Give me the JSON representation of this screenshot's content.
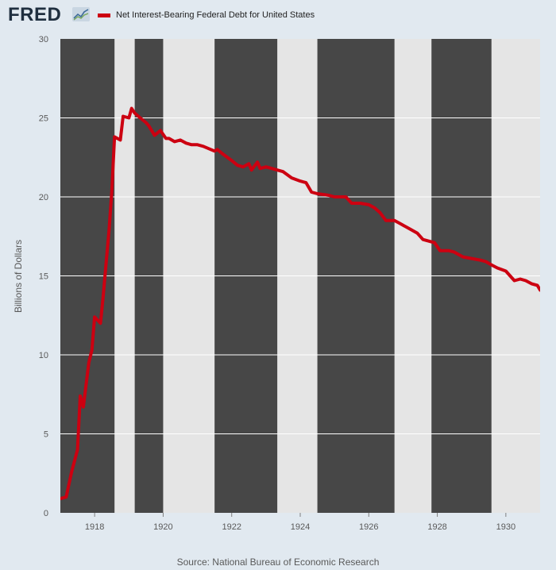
{
  "header": {
    "logo_text": "FRED",
    "logo_icon": "fred-graph-icon"
  },
  "source": "Source: National Bureau of Economic Research",
  "colors": {
    "line": "#cc0011",
    "recession_band": "#474747",
    "plot_background": "#e5e5e5",
    "page_background": "#e1e9f0"
  },
  "chart_data": {
    "type": "line",
    "title": "",
    "xlabel": "",
    "ylabel": "Billions of Dollars",
    "xlim": [
      1917.0,
      1931.0
    ],
    "ylim": [
      0,
      30
    ],
    "yticks": [
      0,
      5,
      10,
      15,
      20,
      25,
      30
    ],
    "xticks": [
      1918,
      1920,
      1922,
      1924,
      1926,
      1928,
      1930
    ],
    "grid": "horizontal",
    "legend_position": "top-left",
    "shaded_periods": [
      [
        1917.0,
        1918.58
      ],
      [
        1919.17,
        1920.0
      ],
      [
        1921.5,
        1923.33
      ],
      [
        1924.5,
        1926.75
      ],
      [
        1927.83,
        1929.58
      ]
    ],
    "series": [
      {
        "name": "Net Interest-Bearing Federal Debt for United States",
        "x": [
          1917.0,
          1917.17,
          1917.33,
          1917.5,
          1917.58,
          1917.67,
          1917.83,
          1917.92,
          1918.0,
          1918.17,
          1918.25,
          1918.33,
          1918.42,
          1918.5,
          1918.58,
          1918.75,
          1918.83,
          1919.0,
          1919.08,
          1919.17,
          1919.33,
          1919.5,
          1919.58,
          1919.75,
          1919.92,
          1920.08,
          1920.17,
          1920.33,
          1920.5,
          1920.67,
          1920.83,
          1921.0,
          1921.17,
          1921.5,
          1921.58,
          1921.75,
          1922.0,
          1922.17,
          1922.33,
          1922.5,
          1922.58,
          1922.75,
          1922.83,
          1923.0,
          1923.17,
          1923.33,
          1923.5,
          1923.75,
          1924.0,
          1924.17,
          1924.33,
          1924.5,
          1924.83,
          1925.0,
          1925.33,
          1925.5,
          1925.75,
          1926.0,
          1926.17,
          1926.33,
          1926.5,
          1926.75,
          1926.92,
          1927.17,
          1927.42,
          1927.58,
          1927.75,
          1927.92,
          1928.08,
          1928.33,
          1928.5,
          1928.58,
          1928.75,
          1929.0,
          1929.25,
          1929.42,
          1929.58,
          1929.75,
          1930.0,
          1930.25,
          1930.42,
          1930.58,
          1930.75,
          1930.92,
          1931.0
        ],
        "values": [
          0.9,
          1.0,
          2.6,
          4.0,
          7.4,
          6.7,
          9.5,
          10.3,
          12.4,
          12.0,
          13.7,
          15.7,
          17.9,
          20.3,
          23.8,
          23.6,
          25.1,
          25.0,
          25.6,
          25.3,
          25.0,
          24.7,
          24.5,
          23.9,
          24.2,
          23.7,
          23.7,
          23.5,
          23.6,
          23.4,
          23.3,
          23.3,
          23.2,
          22.9,
          23.0,
          22.7,
          22.3,
          22.0,
          21.9,
          22.1,
          21.7,
          22.2,
          21.8,
          21.9,
          21.8,
          21.7,
          21.6,
          21.2,
          21.0,
          20.9,
          20.3,
          20.2,
          20.1,
          20.0,
          20.0,
          19.6,
          19.6,
          19.5,
          19.3,
          19.0,
          18.5,
          18.5,
          18.3,
          18.0,
          17.7,
          17.3,
          17.2,
          17.1,
          16.6,
          16.6,
          16.5,
          16.4,
          16.2,
          16.1,
          16.0,
          15.9,
          15.7,
          15.5,
          15.3,
          14.7,
          14.8,
          14.7,
          14.5,
          14.4,
          14.1
        ]
      }
    ]
  }
}
